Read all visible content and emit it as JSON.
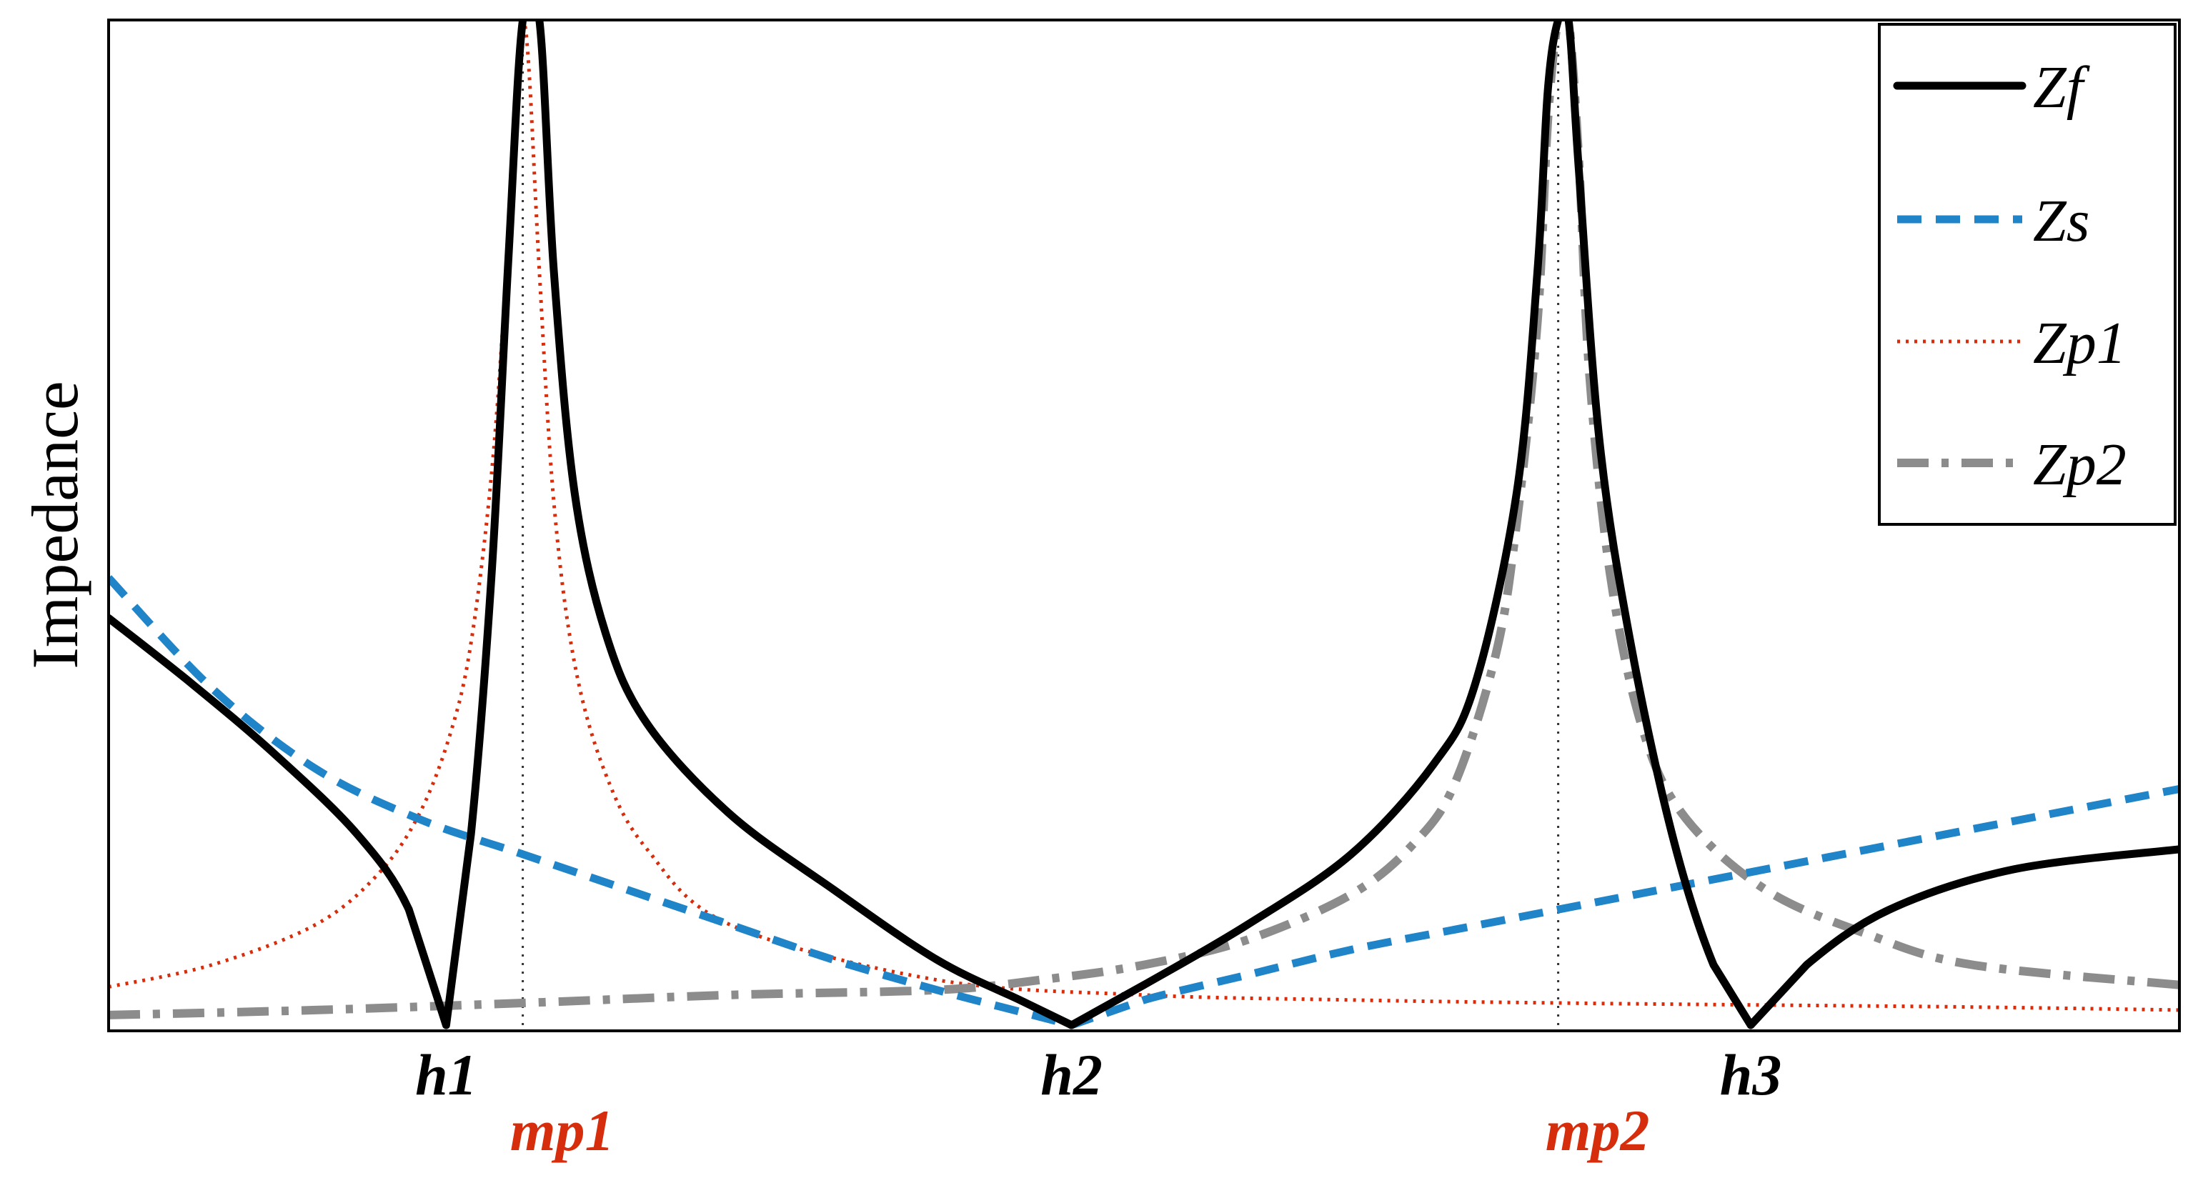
{
  "chart_data": {
    "type": "line",
    "title": "",
    "xlabel": "",
    "ylabel": "Impedance",
    "xlim": [
      0,
      10
    ],
    "ylim": [
      0,
      10
    ],
    "grid": false,
    "legend_position": "top-right",
    "x_ticks": [
      {
        "label": "h1",
        "x": 1.63
      },
      {
        "label": "h2",
        "x": 4.65
      },
      {
        "label": "h3",
        "x": 7.93
      }
    ],
    "marker_lines": [
      {
        "label": "mp1",
        "x": 2.0
      },
      {
        "label": "mp2",
        "x": 7.0
      }
    ],
    "series": [
      {
        "name": "Zf",
        "color": "#000000",
        "dash": "solid",
        "x": [
          0,
          0.4,
          0.8,
          1.2,
          1.45,
          1.63,
          1.75,
          1.85,
          1.93,
          2.0,
          2.08,
          2.15,
          2.25,
          2.4,
          2.6,
          3.0,
          3.5,
          4.0,
          4.4,
          4.65,
          5.0,
          5.5,
          6.0,
          6.4,
          6.6,
          6.8,
          6.9,
          6.95,
          7.0,
          7.05,
          7.1,
          7.2,
          7.35,
          7.55,
          7.75,
          7.93,
          8.2,
          8.6,
          9.2,
          10.0
        ],
        "values": [
          4.05,
          3.4,
          2.7,
          1.9,
          1.15,
          0.0,
          1.9,
          4.5,
          7.6,
          10.0,
          10.0,
          7.5,
          5.3,
          3.9,
          3.0,
          2.1,
          1.35,
          0.65,
          0.25,
          0.0,
          0.4,
          1.0,
          1.7,
          2.6,
          3.4,
          5.3,
          7.5,
          9.3,
          10.0,
          10.0,
          8.5,
          5.8,
          3.8,
          1.9,
          0.6,
          0.0,
          0.6,
          1.15,
          1.55,
          1.75
        ]
      },
      {
        "name": "Zs",
        "color": "#1f84c8",
        "dash": "dashed",
        "x": [
          0,
          0.5,
          1.0,
          1.5,
          2.0,
          2.5,
          3.0,
          3.5,
          4.0,
          4.5,
          4.65,
          5.0,
          5.5,
          6.0,
          6.5,
          7.0,
          7.5,
          8.0,
          8.5,
          9.0,
          9.5,
          10.0
        ],
        "values": [
          4.45,
          3.35,
          2.55,
          2.05,
          1.7,
          1.35,
          1.0,
          0.65,
          0.35,
          0.08,
          0.0,
          0.25,
          0.5,
          0.75,
          0.95,
          1.15,
          1.35,
          1.55,
          1.75,
          1.95,
          2.15,
          2.35
        ]
      },
      {
        "name": "Zp1",
        "color": "#d62d0c",
        "dash": "dotted",
        "x": [
          0,
          0.5,
          1.0,
          1.3,
          1.5,
          1.65,
          1.75,
          1.85,
          1.92,
          1.97,
          2.0,
          2.03,
          2.08,
          2.15,
          2.25,
          2.4,
          2.6,
          3.0,
          4.0,
          5.0,
          6.0,
          7.0,
          8.0,
          9.0,
          10.0
        ],
        "values": [
          0.38,
          0.6,
          1.0,
          1.5,
          2.1,
          2.9,
          3.8,
          5.5,
          7.5,
          9.5,
          10.0,
          9.5,
          7.5,
          5.2,
          3.6,
          2.5,
          1.75,
          1.0,
          0.45,
          0.3,
          0.25,
          0.22,
          0.2,
          0.18,
          0.15
        ]
      },
      {
        "name": "Zp2",
        "color": "#8c8c8c",
        "dash": "dashdot",
        "x": [
          0,
          1.0,
          2.0,
          3.0,
          4.0,
          4.5,
          5.0,
          5.5,
          6.0,
          6.3,
          6.5,
          6.7,
          6.8,
          6.9,
          6.95,
          7.0,
          7.05,
          7.1,
          7.15,
          7.25,
          7.4,
          7.6,
          8.0,
          8.5,
          9.0,
          10.0
        ],
        "values": [
          0.1,
          0.15,
          0.22,
          0.3,
          0.35,
          0.45,
          0.6,
          0.85,
          1.3,
          1.8,
          2.4,
          3.7,
          5.0,
          7.0,
          9.0,
          10.0,
          10.0,
          8.6,
          6.5,
          4.5,
          3.0,
          2.1,
          1.35,
          0.9,
          0.6,
          0.4
        ]
      }
    ]
  }
}
